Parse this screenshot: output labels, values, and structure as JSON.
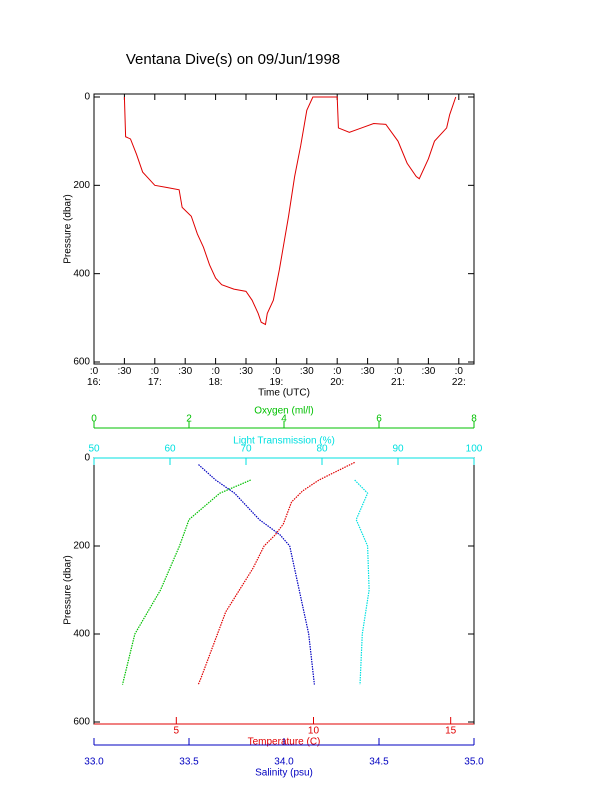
{
  "chart_data": [
    {
      "type": "line",
      "title": "Ventana Dive(s) on 09/Jun/1998",
      "xlabel": "Time (UTC)",
      "ylabel": "Pressure (dbar)",
      "xlim": [
        16,
        22.25
      ],
      "ylim": [
        0,
        600
      ],
      "xticks": [
        {
          "value": 16,
          "label": ":0\n16:"
        },
        {
          "value": 16.5,
          "label": ":30"
        },
        {
          "value": 17,
          "label": ":0\n17:"
        },
        {
          "value": 17.5,
          "label": ":30"
        },
        {
          "value": 18,
          "label": ":0\n18:"
        },
        {
          "value": 18.5,
          "label": ":30"
        },
        {
          "value": 19,
          "label": ":0\n19:"
        },
        {
          "value": 19.5,
          "label": ":30"
        },
        {
          "value": 20,
          "label": ":0\n20:"
        },
        {
          "value": 20.5,
          "label": ":30"
        },
        {
          "value": 21,
          "label": ":0\n21:"
        },
        {
          "value": 21.5,
          "label": ":30"
        },
        {
          "value": 22,
          "label": ":0\n22:"
        }
      ],
      "yticks": [
        0,
        200,
        400,
        600
      ],
      "series": [
        {
          "color": "#e00000",
          "x": [
            16.5,
            16.52,
            16.6,
            16.7,
            16.8,
            16.9,
            17.0,
            17.2,
            17.4,
            17.45,
            17.6,
            17.7,
            17.8,
            17.9,
            18.0,
            18.1,
            18.3,
            18.5,
            18.6,
            18.7,
            18.75,
            18.82,
            18.85,
            18.95,
            19.05,
            19.1,
            19.2,
            19.3,
            19.4,
            19.5,
            19.6,
            20.0,
            20.02,
            20.2,
            20.4,
            20.6,
            20.8,
            21.0,
            21.15,
            21.3,
            21.35,
            21.5,
            21.6,
            21.8,
            21.85,
            21.95
          ],
          "values": [
            0,
            90,
            95,
            130,
            170,
            185,
            200,
            205,
            210,
            250,
            270,
            310,
            340,
            380,
            410,
            425,
            435,
            440,
            460,
            490,
            510,
            515,
            490,
            460,
            390,
            350,
            270,
            180,
            110,
            30,
            0,
            0,
            70,
            80,
            70,
            60,
            62,
            100,
            150,
            180,
            185,
            140,
            100,
            70,
            40,
            0
          ]
        }
      ]
    },
    {
      "type": "profile",
      "ylabel": "Pressure (dbar)",
      "ylim": [
        0,
        600
      ],
      "yticks": [
        0,
        200,
        400,
        600
      ],
      "axes": [
        {
          "label": "Oxygen (ml/l)",
          "color": "#00c000",
          "xlim": [
            0,
            8
          ],
          "xticks": [
            0,
            2,
            4,
            6,
            8
          ],
          "x": [
            3.3,
            2.65,
            2.0,
            1.8,
            1.4,
            0.86,
            0.6
          ],
          "y": [
            50,
            80,
            140,
            200,
            300,
            400,
            515
          ]
        },
        {
          "label": "Light Transmission (%)",
          "color": "#00e0e0",
          "xlim": [
            50,
            100
          ],
          "xticks": [
            50,
            60,
            70,
            80,
            90,
            100
          ],
          "x": [
            84.3,
            86,
            84.5,
            86,
            86.2,
            85.3,
            85
          ],
          "y": [
            50,
            80,
            140,
            200,
            300,
            400,
            515
          ]
        },
        {
          "label": "Temperature (C)",
          "color": "#e00000",
          "xlim": [
            2,
            15.85
          ],
          "xticks": [
            5,
            10,
            15
          ],
          "x": [
            11.5,
            10.2,
            9.6,
            9.2,
            8.9,
            8.6,
            8.2,
            7.8,
            7.3,
            6.8,
            6.5,
            6.2,
            5.9,
            5.8
          ],
          "y": [
            10,
            50,
            75,
            100,
            150,
            175,
            200,
            250,
            300,
            350,
            400,
            450,
            500,
            515
          ]
        },
        {
          "label": "Salinity (psu)",
          "color": "#0000c0",
          "xlim": [
            33,
            35
          ],
          "xticks": [
            {
              "value": 33,
              "label": "33.0"
            },
            {
              "value": 33.5,
              "label": "33.5"
            },
            {
              "value": 34,
              "label": "34.0"
            },
            {
              "value": 34.5,
              "label": "34.5"
            },
            {
              "value": 35,
              "label": "35.0"
            }
          ],
          "x": [
            33.55,
            33.64,
            33.74,
            33.87,
            33.98,
            34.03,
            34.08,
            34.13,
            34.16
          ],
          "y": [
            15,
            50,
            80,
            140,
            175,
            200,
            300,
            400,
            515
          ]
        }
      ]
    }
  ]
}
